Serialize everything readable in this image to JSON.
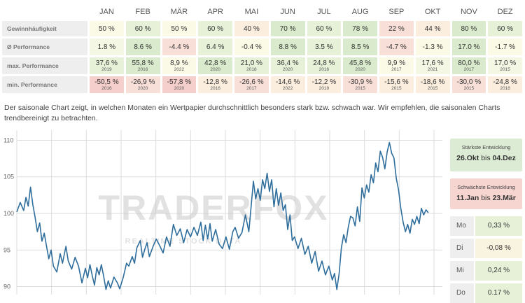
{
  "table": {
    "months": [
      "JAN",
      "FEB",
      "MÄR",
      "APR",
      "MAI",
      "JUN",
      "JUL",
      "AUG",
      "SEP",
      "OKT",
      "NOV",
      "DEZ"
    ],
    "rows": {
      "gewinn": {
        "label": "Gewinnhäufigkeit",
        "values": [
          "50 %",
          "60 %",
          "50 %",
          "60 %",
          "40 %",
          "70 %",
          "60 %",
          "78 %",
          "22 %",
          "44 %",
          "80 %",
          "60 %"
        ]
      },
      "perf": {
        "label": "Ø Performance",
        "values": [
          "1.8 %",
          "8.6 %",
          "-4.4 %",
          "6.4 %",
          "-0.4 %",
          "8.8 %",
          "3.5 %",
          "8.5 %",
          "-4.7 %",
          "-1.3 %",
          "17.0 %",
          "-1.7 %"
        ]
      },
      "max": {
        "label": "max. Performance",
        "values": [
          "37,6 %",
          "55,8 %",
          "8,9 %",
          "42,8 %",
          "21,0 %",
          "36,4 %",
          "24,8 %",
          "45,8 %",
          "9,9 %",
          "17,6 %",
          "80,0 %",
          "17,0 %"
        ],
        "years": [
          "2019",
          "2016",
          "2022",
          "2020",
          "2018",
          "2020",
          "2016",
          "2020",
          "2017",
          "2021",
          "2017",
          "2015"
        ]
      },
      "min": {
        "label": "min. Performance",
        "values": [
          "-50,5 %",
          "-26,9 %",
          "-57,8 %",
          "-12,8 %",
          "-26,6 %",
          "-14,6 %",
          "-12,2 %",
          "-30,9 %",
          "-15,6 %",
          "-18,6 %",
          "-30,0 %",
          "-24,8 %"
        ],
        "years": [
          "2016",
          "2020",
          "2020",
          "2016",
          "2017",
          "2022",
          "2019",
          "2015",
          "2015",
          "2015",
          "2015",
          "2018"
        ]
      }
    }
  },
  "description": "Der saisonale Chart zeigt, in welchen Monaten ein Wertpapier durchschnittlich besonders stark bzw. schwach war. Wir empfehlen, die saisonalen Charts trendbereinigt zu betrachten.",
  "watermark": {
    "main": "TRADERFOX",
    "sub": "REALTIME STOCK DATA"
  },
  "strongest": {
    "title": "Stärkste Entwicklung",
    "from": "26.Okt",
    "sep": "bis",
    "to": "04.Dez"
  },
  "weakest": {
    "title": "Schwächste Entwicklung",
    "from": "11.Jan",
    "sep": "bis",
    "to": "23.Mär"
  },
  "weekdays": [
    {
      "day": "Mo",
      "value": "0,33 %"
    },
    {
      "day": "Di",
      "value": "-0,08 %"
    },
    {
      "day": "Mi",
      "value": "0,24 %"
    },
    {
      "day": "Do",
      "value": "0.17 %"
    }
  ],
  "colors": {
    "line": "#2f6e9c",
    "grid": "#dddddd",
    "strong_bg": "#dcebd3",
    "weak_bg": "#f6d5d0",
    "pos_bg": "#e6f1d8",
    "neg_bg": "#f9f4df"
  },
  "chart_data": {
    "type": "line",
    "ylim": [
      89,
      111
    ],
    "yticks": [
      90,
      95,
      100,
      105,
      110
    ],
    "xlim": [
      0,
      365
    ],
    "series": [
      {
        "points": [
          [
            0,
            100.2
          ],
          [
            3,
            101.5
          ],
          [
            6,
            100.4
          ],
          [
            8,
            102.2
          ],
          [
            10,
            101
          ],
          [
            12,
            103.6
          ],
          [
            14,
            101.2
          ],
          [
            16,
            99.5
          ],
          [
            18,
            97.5
          ],
          [
            20,
            98.7
          ],
          [
            22,
            96.2
          ],
          [
            24,
            97.3
          ],
          [
            26,
            95.5
          ],
          [
            28,
            93.8
          ],
          [
            30,
            95
          ],
          [
            32,
            92.8
          ],
          [
            35,
            92
          ],
          [
            38,
            94.5
          ],
          [
            40,
            93.2
          ],
          [
            43,
            95.5
          ],
          [
            45,
            93.5
          ],
          [
            48,
            92.4
          ],
          [
            51,
            94
          ],
          [
            54,
            92.8
          ],
          [
            57,
            90.5
          ],
          [
            60,
            92.5
          ],
          [
            62,
            91.2
          ],
          [
            64,
            93
          ],
          [
            66,
            91.5
          ],
          [
            68,
            90.2
          ],
          [
            70,
            92.6
          ],
          [
            72,
            91.6
          ],
          [
            74,
            93
          ],
          [
            76,
            91.4
          ],
          [
            78,
            89.6
          ],
          [
            80,
            90.8
          ],
          [
            82,
            89.8
          ],
          [
            85,
            91.3
          ],
          [
            88,
            90.5
          ],
          [
            90,
            89.7
          ],
          [
            93,
            91.2
          ],
          [
            96,
            93.2
          ],
          [
            98,
            92.8
          ],
          [
            101,
            94.1
          ],
          [
            103,
            93.2
          ],
          [
            105,
            95.3
          ],
          [
            108,
            96.3
          ],
          [
            110,
            94
          ],
          [
            112,
            95.1
          ],
          [
            114,
            96
          ],
          [
            116,
            94.1
          ],
          [
            119,
            95.4
          ],
          [
            122,
            96.5
          ],
          [
            125,
            95.6
          ],
          [
            128,
            94.6
          ],
          [
            131,
            96.8
          ],
          [
            134,
            95.5
          ],
          [
            137,
            98.5
          ],
          [
            140,
            97
          ],
          [
            143,
            97.9
          ],
          [
            146,
            96
          ],
          [
            149,
            97.8
          ],
          [
            152,
            96.8
          ],
          [
            155,
            98.1
          ],
          [
            158,
            97
          ],
          [
            161,
            98.8
          ],
          [
            163,
            96.3
          ],
          [
            165,
            98.4
          ],
          [
            167,
            96.5
          ],
          [
            169,
            98.6
          ],
          [
            171,
            96.2
          ],
          [
            174,
            97.8
          ],
          [
            177,
            95.8
          ],
          [
            180,
            95.2
          ],
          [
            183,
            96.8
          ],
          [
            186,
            95.1
          ],
          [
            189,
            97.5
          ],
          [
            191,
            98.1
          ],
          [
            194,
            96.6
          ],
          [
            197,
            97.4
          ],
          [
            200,
            99.8
          ],
          [
            203,
            97.5
          ],
          [
            205,
            100.9
          ],
          [
            207,
            104.4
          ],
          [
            209,
            102
          ],
          [
            211,
            103.4
          ],
          [
            213,
            101.8
          ],
          [
            215,
            104.6
          ],
          [
            217,
            103.4
          ],
          [
            219,
            105.5
          ],
          [
            221,
            103
          ],
          [
            223,
            104.6
          ],
          [
            225,
            100.9
          ],
          [
            227,
            103.4
          ],
          [
            229,
            101.1
          ],
          [
            231,
            102.8
          ],
          [
            233,
            100.4
          ],
          [
            235,
            101.2
          ],
          [
            237,
            97.8
          ],
          [
            239,
            99.8
          ],
          [
            241,
            96.3
          ],
          [
            243,
            96.8
          ],
          [
            246,
            95.2
          ],
          [
            249,
            96.6
          ],
          [
            252,
            94.4
          ],
          [
            255,
            95.5
          ],
          [
            258,
            93.2
          ],
          [
            261,
            94.8
          ],
          [
            264,
            92.1
          ],
          [
            267,
            93.5
          ],
          [
            270,
            91.6
          ],
          [
            273,
            92.8
          ],
          [
            276,
            90.9
          ],
          [
            278,
            91.8
          ],
          [
            280,
            89.6
          ],
          [
            282,
            91.8
          ],
          [
            284,
            95.3
          ],
          [
            286,
            97.1
          ],
          [
            288,
            96
          ],
          [
            290,
            98.1
          ],
          [
            292,
            99.6
          ],
          [
            294,
            99.4
          ],
          [
            296,
            98.3
          ],
          [
            298,
            100.9
          ],
          [
            300,
            98.9
          ],
          [
            302,
            103.5
          ],
          [
            304,
            102.1
          ],
          [
            306,
            103.9
          ],
          [
            308,
            102.9
          ],
          [
            310,
            105.3
          ],
          [
            312,
            104.2
          ],
          [
            314,
            106.9
          ],
          [
            316,
            105.7
          ],
          [
            318,
            108.5
          ],
          [
            320,
            107.7
          ],
          [
            322,
            106.1
          ],
          [
            324,
            108.4
          ],
          [
            326,
            109.7
          ],
          [
            328,
            108.2
          ],
          [
            330,
            107.6
          ],
          [
            332,
            104.8
          ],
          [
            334,
            103.2
          ],
          [
            336,
            100.7
          ],
          [
            338,
            98.8
          ],
          [
            340,
            97.5
          ],
          [
            342,
            98.5
          ],
          [
            344,
            97.3
          ],
          [
            346,
            99.2
          ],
          [
            348,
            98.5
          ],
          [
            350,
            99.6
          ],
          [
            352,
            98.6
          ],
          [
            354,
            100.7
          ],
          [
            356,
            99.8
          ],
          [
            358,
            100.5
          ],
          [
            360,
            100.1
          ]
        ]
      }
    ]
  }
}
